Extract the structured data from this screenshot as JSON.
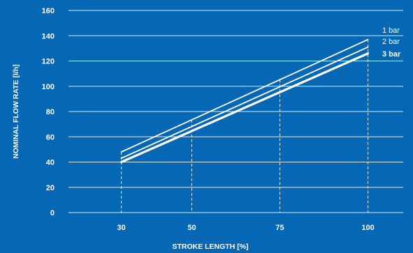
{
  "chart_data": {
    "type": "line",
    "title": "",
    "xlabel": "STROKE LENGTH [%]",
    "ylabel": "NOMINAL FLOW RATE [l/h]",
    "x": [
      30,
      50,
      75,
      100
    ],
    "x_tick_labels": [
      "30",
      "50",
      "75",
      "100"
    ],
    "y_tick_labels": [
      "0",
      "20",
      "40",
      "60",
      "80",
      "100",
      "120",
      "140",
      "160"
    ],
    "xlim": [
      15,
      110
    ],
    "ylim": [
      0,
      160
    ],
    "grid": "horizontal solid, vertical dashed at x ticks",
    "legend_placement": "right end of lines",
    "series": [
      {
        "name": "1 bar",
        "x": [
          30,
          100
        ],
        "values": [
          48,
          137
        ],
        "bold": false
      },
      {
        "name": "2 bar",
        "x": [
          30,
          100
        ],
        "values": [
          43,
          131
        ],
        "bold": false
      },
      {
        "name": "3 bar",
        "x": [
          30,
          100
        ],
        "values": [
          40,
          126
        ],
        "bold": true
      }
    ],
    "colors": {
      "background": "#0667b4",
      "foreground": "#ffffff"
    }
  }
}
